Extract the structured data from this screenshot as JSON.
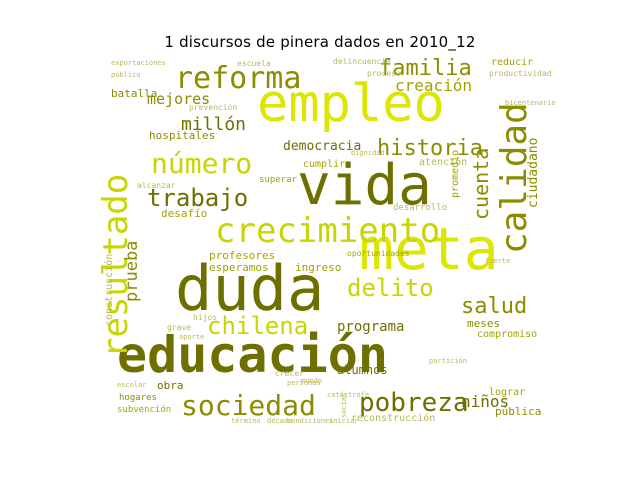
{
  "title": "1 discursos de pinera dados en 2010_12",
  "palette": {
    "dark_olive": "#6f6f00",
    "olive": "#8c8c00",
    "mid_olive": "#a3a300",
    "yellow_green": "#c9d400",
    "lime": "#dce600",
    "pale": "#b8b85a"
  },
  "words": [
    {
      "text": "educación",
      "color": "#6f6f00"
    },
    {
      "text": "duda",
      "color": "#6f6f00"
    },
    {
      "text": "vida",
      "color": "#6f6f00"
    },
    {
      "text": "empleo",
      "color": "#dce600"
    },
    {
      "text": "meta",
      "color": "#dce600"
    },
    {
      "text": "crecimiento",
      "color": "#c9d400"
    },
    {
      "text": "resultado",
      "color": "#c9d400"
    },
    {
      "text": "calidad",
      "color": "#8c8c00"
    },
    {
      "text": "reforma",
      "color": "#8c8c00"
    },
    {
      "text": "número",
      "color": "#c9d400"
    },
    {
      "text": "sociedad",
      "color": "#8c8c00"
    },
    {
      "text": "pobreza",
      "color": "#6f6f00"
    },
    {
      "text": "chilena",
      "color": "#c9d400"
    },
    {
      "text": "delito",
      "color": "#c9d400"
    },
    {
      "text": "trabajo",
      "color": "#6f6f00"
    },
    {
      "text": "familia",
      "color": "#8c8c00"
    },
    {
      "text": "historia",
      "color": "#8c8c00"
    },
    {
      "text": "salud",
      "color": "#8c8c00"
    },
    {
      "text": "cuenta",
      "color": "#8c8c00"
    },
    {
      "text": "creación",
      "color": "#a3a300"
    },
    {
      "text": "millón",
      "color": "#6f6f00"
    },
    {
      "text": "mejores",
      "color": "#8c8c00"
    },
    {
      "text": "democracia",
      "color": "#6f6f00"
    },
    {
      "text": "prueba",
      "color": "#8c8c00"
    },
    {
      "text": "programa",
      "color": "#6f6f00"
    },
    {
      "text": "niños",
      "color": "#6f6f00"
    },
    {
      "text": "ciudadano",
      "color": "#8c8c00"
    },
    {
      "text": "batalla",
      "color": "#8c8c00"
    },
    {
      "text": "hospitales",
      "color": "#8c8c00"
    },
    {
      "text": "desafío",
      "color": "#a3a300"
    },
    {
      "text": "profesores",
      "color": "#a3a300"
    },
    {
      "text": "esperamos",
      "color": "#a3a300"
    },
    {
      "text": "ingreso",
      "color": "#a3a300"
    },
    {
      "text": "construcción",
      "color": "#b8b85a"
    },
    {
      "text": "alumnos",
      "color": "#6f6f00"
    },
    {
      "text": "obra",
      "color": "#6f6f00"
    },
    {
      "text": "meses",
      "color": "#8c8c00"
    },
    {
      "text": "compromiso",
      "color": "#a3a300"
    },
    {
      "text": "lograr",
      "color": "#a3a300"
    },
    {
      "text": "pública",
      "color": "#8c8c00"
    },
    {
      "text": "reconstrucción",
      "color": "#b8b85a"
    },
    {
      "text": "reducir",
      "color": "#a3a300"
    },
    {
      "text": "atención",
      "color": "#b8b85a"
    },
    {
      "text": "cumplir",
      "color": "#a3a300"
    },
    {
      "text": "desarrollo",
      "color": "#b8b85a"
    },
    {
      "text": "promedio",
      "color": "#a3a300"
    },
    {
      "text": "oportunidades",
      "color": "#a3a300"
    },
    {
      "text": "superar",
      "color": "#a3a300"
    },
    {
      "text": "escuela",
      "color": "#b8b85a"
    },
    {
      "text": "delincuencia",
      "color": "#b8b85a"
    },
    {
      "text": "hogares",
      "color": "#8c8c00"
    },
    {
      "text": "subvención",
      "color": "#a3a300"
    },
    {
      "text": "proceso",
      "color": "#b8b85a"
    },
    {
      "text": "bicentenario",
      "color": "#b8b85a"
    },
    {
      "text": "productividad",
      "color": "#b8b85a"
    },
    {
      "text": "prevención",
      "color": "#b8b85a"
    },
    {
      "text": "alcanzar",
      "color": "#b8b85a"
    },
    {
      "text": "exportaciones",
      "color": "#b8b85a"
    },
    {
      "text": "público",
      "color": "#b8b85a"
    },
    {
      "text": "crecer",
      "color": "#b8b85a"
    },
    {
      "text": "personas",
      "color": "#b8b85a"
    },
    {
      "text": "catástrofe",
      "color": "#b8b85a"
    },
    {
      "text": "escolar",
      "color": "#b8b85a"
    },
    {
      "text": "social",
      "color": "#b8b85a"
    },
    {
      "text": "década",
      "color": "#b8b85a"
    },
    {
      "text": "condiciones",
      "color": "#b8b85a"
    },
    {
      "text": "iniciar",
      "color": "#b8b85a"
    },
    {
      "text": "término",
      "color": "#b8b85a"
    },
    {
      "text": "dignidad",
      "color": "#b8b85a"
    },
    {
      "text": "partición",
      "color": "#b8b85a"
    },
    {
      "text": "fuerte",
      "color": "#b8b85a"
    },
    {
      "text": "hijos",
      "color": "#b8b85a"
    },
    {
      "text": "grave",
      "color": "#b8b85a"
    },
    {
      "text": "aporte",
      "color": "#b8b85a"
    },
    {
      "text": "mundo",
      "color": "#b8b85a"
    }
  ]
}
